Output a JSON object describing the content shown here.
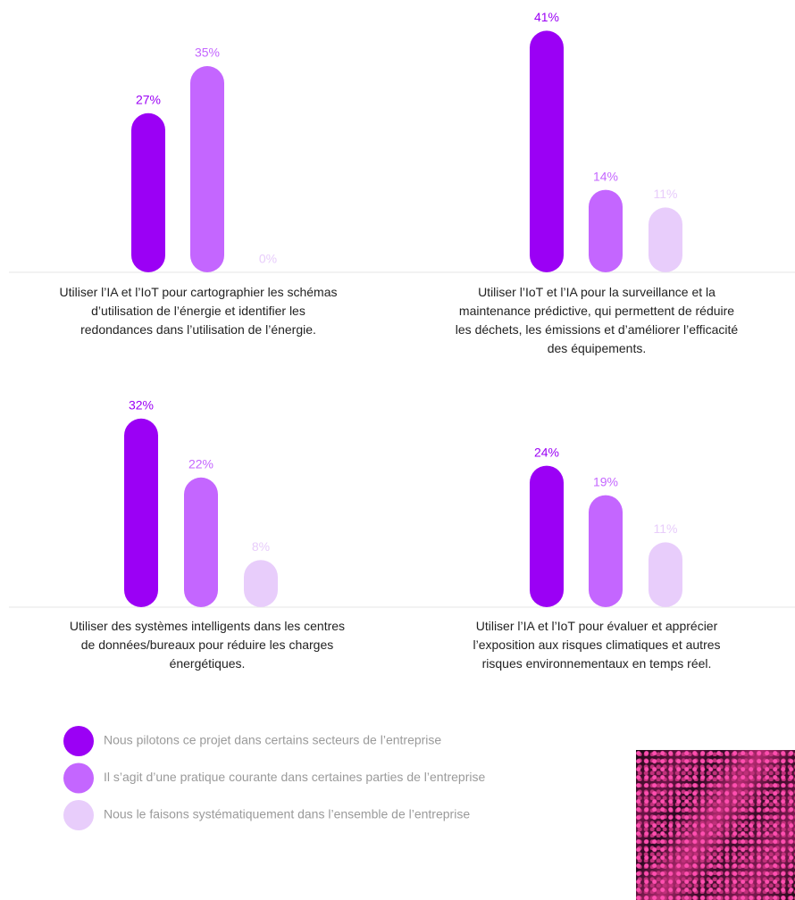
{
  "chart_data": [
    {
      "type": "bar",
      "title": "Utiliser l’IA et l’IoT pour cartographier les schémas d’utilisation de l’énergie et identifier les redondances dans l’utilisation de l’énergie.",
      "values": [
        27,
        35,
        0
      ],
      "value_labels": [
        "27%",
        "35%",
        "0%"
      ]
    },
    {
      "type": "bar",
      "title": "Utiliser l’IoT et l’IA pour la surveillance et la maintenance prédictive, qui permettent de réduire les déchets, les émissions et d’améliorer l’efficacité des équipements.",
      "values": [
        41,
        14,
        11
      ],
      "value_labels": [
        "41%",
        "14%",
        "11%"
      ]
    },
    {
      "type": "bar",
      "title": "Utiliser des systèmes intelligents dans les centres de données/bureaux pour réduire les charges énergétiques.",
      "values": [
        32,
        22,
        8
      ],
      "value_labels": [
        "32%",
        "22%",
        "8%"
      ]
    },
    {
      "type": "bar",
      "title": "Utiliser l’IA et l’IoT pour évaluer et apprécier l’exposition aux risques climatiques et autres risques environnementaux en temps réel.",
      "values": [
        24,
        19,
        11
      ],
      "value_labels": [
        "24%",
        "19%",
        "11%"
      ]
    }
  ],
  "legend": [
    {
      "name": "Nous pilotons ce projet dans certains secteurs de l’entreprise",
      "color": "#9b00f5"
    },
    {
      "name": "Il s’agit d’une pratique courante dans certaines parties de l’entreprise",
      "color": "#c466ff"
    },
    {
      "name": "Nous le faisons systématiquement dans l’ensemble de l’entreprise",
      "color": "#e8cdfb"
    }
  ]
}
